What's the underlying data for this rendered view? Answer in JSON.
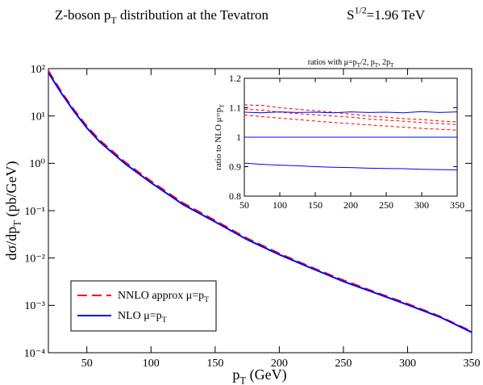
{
  "chart_data": [
    {
      "type": "line",
      "title": [
        {
          "text": "Z-boson p"
        },
        {
          "text": "T",
          "shift": "sub"
        },
        {
          "text": " distribution at the Tevatron"
        }
      ],
      "annotation": [
        {
          "text": "S"
        },
        {
          "text": "1/2",
          "shift": "sup"
        },
        {
          "text": "=1.96 TeV"
        }
      ],
      "xlabel": [
        {
          "text": "p"
        },
        {
          "text": "T",
          "shift": "sub"
        },
        {
          "text": " (GeV)"
        }
      ],
      "ylabel": [
        {
          "text": "dσ/dp"
        },
        {
          "text": "T",
          "shift": "sub"
        },
        {
          "text": " (pb/GeV)"
        }
      ],
      "log_y": true,
      "legend": "lower left",
      "x": [
        20,
        30,
        40,
        50,
        60,
        80,
        100,
        125,
        150,
        175,
        200,
        225,
        250,
        275,
        300,
        325,
        350
      ],
      "series": [
        {
          "name": [
            {
              "text": "NNLO approx   μ=p"
            },
            {
              "text": "T",
              "shift": "sub"
            }
          ],
          "color": "#ff0000",
          "dashed": true,
          "values": [
            90,
            33,
            13.5,
            6.1,
            3.1,
            1.05,
            0.42,
            0.145,
            0.062,
            0.026,
            0.0125,
            0.0064,
            0.0034,
            0.0019,
            0.00108,
            0.00059,
            0.00028
          ]
        },
        {
          "name": [
            {
              "text": "NLO  μ=p"
            },
            {
              "text": "T",
              "shift": "sub"
            }
          ],
          "color": "#0000ff",
          "dashed": false,
          "values": [
            82,
            30.5,
            12.5,
            5.6,
            2.85,
            0.97,
            0.39,
            0.135,
            0.058,
            0.0245,
            0.0118,
            0.0061,
            0.0032,
            0.00182,
            0.00103,
            0.00057,
            0.00027
          ]
        }
      ],
      "xlim": [
        20,
        350
      ],
      "xticks": [
        50,
        100,
        150,
        200,
        250,
        300,
        350
      ],
      "ylim": [
        0.0001,
        100
      ],
      "yticks": [
        {
          "value": 0.0001,
          "label": "10⁻⁴"
        },
        {
          "value": 0.001,
          "label": "10⁻³"
        },
        {
          "value": 0.01,
          "label": "10⁻²"
        },
        {
          "value": 0.1,
          "label": "10⁻¹"
        },
        {
          "value": 1,
          "label": "10⁰"
        },
        {
          "value": 10,
          "label": "10¹"
        },
        {
          "value": 100,
          "label": "10²"
        }
      ]
    },
    {
      "type": "line",
      "title": [
        {
          "text": "ratios with μ=p"
        },
        {
          "text": "T",
          "shift": "sub"
        },
        {
          "text": "/2, p"
        },
        {
          "text": "T",
          "shift": "sub"
        },
        {
          "text": ", 2p"
        },
        {
          "text": "T",
          "shift": "sub"
        }
      ],
      "ylabel": [
        {
          "text": "ratio to NLO μ=p"
        },
        {
          "text": "T",
          "shift": "sub"
        }
      ],
      "x": [
        50,
        75,
        100,
        125,
        150,
        175,
        200,
        225,
        250,
        275,
        300,
        325,
        350
      ],
      "series": [
        {
          "color": "#ff0000",
          "dashed": true,
          "values": [
            1.11,
            1.108,
            1.1,
            1.095,
            1.09,
            1.085,
            1.078,
            1.072,
            1.068,
            1.063,
            1.06,
            1.055,
            1.052
          ]
        },
        {
          "color": "#ff0000",
          "dashed": true,
          "values": [
            1.095,
            1.092,
            1.085,
            1.08,
            1.076,
            1.072,
            1.068,
            1.062,
            1.058,
            1.054,
            1.05,
            1.046,
            1.043
          ]
        },
        {
          "color": "#ff0000",
          "dashed": true,
          "values": [
            1.075,
            1.07,
            1.065,
            1.06,
            1.055,
            1.05,
            1.046,
            1.042,
            1.038,
            1.034,
            1.03,
            1.027,
            1.024
          ]
        },
        {
          "color": "#0000ff",
          "dashed": false,
          "values": [
            1.085,
            1.083,
            1.086,
            1.084,
            1.085,
            1.083,
            1.086,
            1.084,
            1.085,
            1.083,
            1.087,
            1.084,
            1.086
          ]
        },
        {
          "color": "#0000ff",
          "dashed": false,
          "values": [
            1,
            1,
            1,
            1,
            1,
            1,
            1,
            1,
            1,
            1,
            1,
            1,
            1
          ]
        },
        {
          "color": "#0000ff",
          "dashed": false,
          "values": [
            0.912,
            0.908,
            0.905,
            0.903,
            0.9,
            0.898,
            0.897,
            0.895,
            0.894,
            0.893,
            0.891,
            0.89,
            0.889
          ]
        }
      ],
      "xlim": [
        50,
        350
      ],
      "xticks": [
        50,
        100,
        150,
        200,
        250,
        300,
        350
      ],
      "ylim": [
        0.8,
        1.2
      ],
      "yticks": [
        0.8,
        0.9,
        1,
        1.1,
        1.2
      ]
    }
  ]
}
